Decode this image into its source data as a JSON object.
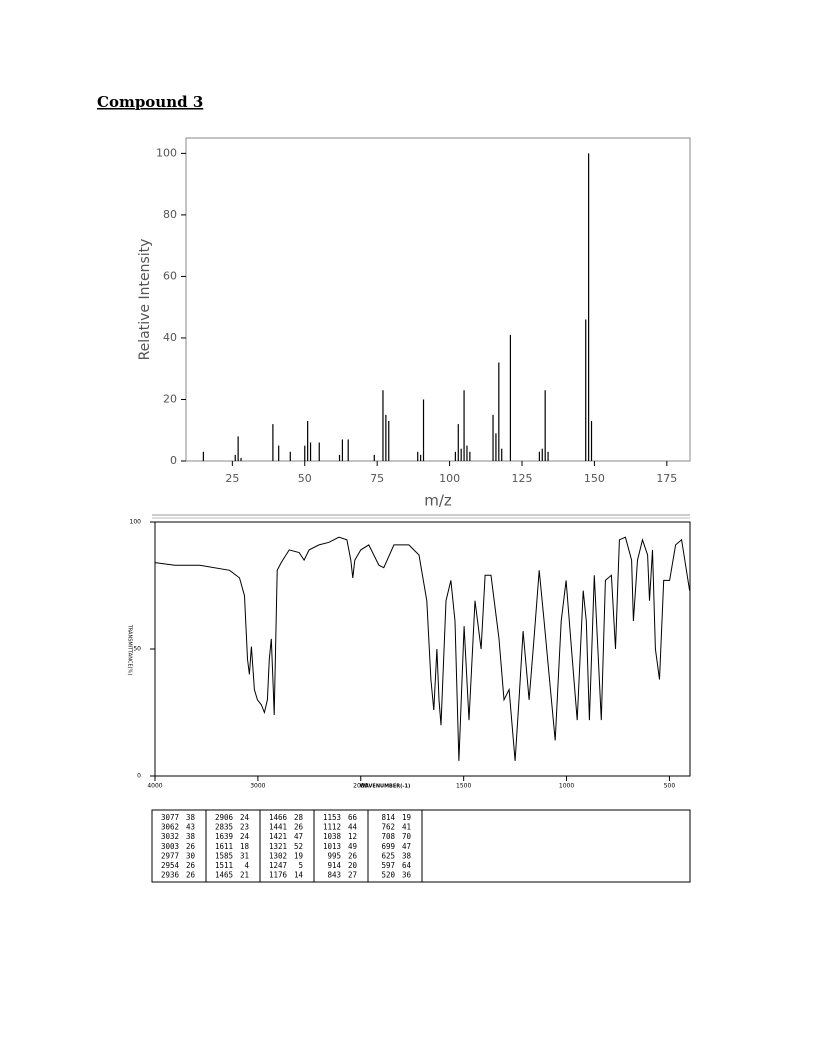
{
  "header": {
    "title": "Compound 3"
  },
  "chart_data": [
    {
      "type": "bar",
      "xlabel": "m/z",
      "ylabel": "Relative Intensity",
      "color": "#000000",
      "x": [
        15,
        26,
        27,
        28,
        39,
        41,
        45,
        50,
        51,
        52,
        55,
        62,
        63,
        65,
        74,
        77,
        78,
        79,
        89,
        90,
        91,
        102,
        103,
        104,
        105,
        106,
        107,
        115,
        116,
        117,
        118,
        121,
        131,
        132,
        133,
        134,
        147,
        148,
        149
      ],
      "values": [
        3,
        2,
        8,
        1,
        12,
        5,
        3,
        5,
        13,
        6,
        6,
        2,
        7,
        7,
        2,
        23,
        15,
        13,
        3,
        2,
        20,
        3,
        12,
        4,
        23,
        5,
        3,
        15,
        9,
        32,
        4,
        41,
        3,
        4,
        23,
        3,
        46,
        100,
        13
      ],
      "xlim": [
        9,
        183
      ],
      "ylim": [
        0,
        105
      ],
      "xticks": [
        25,
        50,
        75,
        100,
        125,
        150,
        175
      ],
      "yticks": [
        0,
        20,
        40,
        60,
        80,
        100
      ]
    },
    {
      "type": "line",
      "xlabel": "WAVENUMBER(-1)",
      "ylabel": "TRANSMITTANCE(%)",
      "color": "#000000",
      "x_scale_break": 2000,
      "x_scale_factor": 2,
      "x": [
        4000,
        3807,
        3565,
        3275,
        3179,
        3130,
        3101,
        3082,
        3063,
        3034,
        3005,
        2966,
        2937,
        2908,
        2889,
        2870,
        2850,
        2841,
        2812,
        2773,
        2696,
        2599,
        2551,
        2502,
        2406,
        2309,
        2213,
        2135,
        2097,
        2077,
        2058,
        2000,
        1961,
        1912,
        1888,
        1839,
        1766,
        1717,
        1679,
        1659,
        1645,
        1630,
        1620,
        1610,
        1586,
        1562,
        1542,
        1523,
        1498,
        1474,
        1445,
        1415,
        1396,
        1367,
        1328,
        1304,
        1279,
        1250,
        1231,
        1211,
        1182,
        1158,
        1133,
        1109,
        1055,
        1026,
        1002,
        972,
        948,
        919,
        904,
        889,
        865,
        831,
        811,
        782,
        762,
        743,
        714,
        684,
        675,
        655,
        631,
        606,
        597,
        582,
        568,
        548,
        528,
        499,
        470,
        441,
        402
      ],
      "values": [
        84,
        83,
        83,
        81,
        78,
        71,
        46,
        40,
        51,
        34,
        30,
        28,
        25,
        30,
        46,
        54,
        34,
        24,
        81,
        84,
        89,
        88,
        85,
        89,
        91,
        92,
        94,
        93,
        85,
        78,
        85,
        89,
        91,
        83,
        82,
        91,
        91,
        87,
        69,
        38,
        26,
        50,
        30,
        20,
        69,
        77,
        61,
        6,
        59,
        22,
        69,
        50,
        79,
        79,
        54,
        30,
        34,
        6,
        30,
        57,
        30,
        54,
        81,
        61,
        14,
        61,
        77,
        46,
        22,
        73,
        61,
        22,
        79,
        22,
        77,
        79,
        50,
        93,
        94,
        85,
        61,
        85,
        93,
        87,
        69,
        89,
        50,
        38,
        77,
        77,
        91,
        93,
        73
      ],
      "xlim": [
        4000,
        400
      ],
      "ylim": [
        0,
        100
      ],
      "xticks": [
        4000,
        3000,
        2000,
        1500,
        1000,
        500
      ],
      "yticks": [
        0,
        50,
        100
      ]
    }
  ],
  "table": {
    "columns": [
      [
        [
          3077,
          38
        ],
        [
          3062,
          43
        ],
        [
          3032,
          38
        ],
        [
          3003,
          26
        ],
        [
          2977,
          30
        ],
        [
          2954,
          26
        ],
        [
          2936,
          26
        ]
      ],
      [
        [
          2906,
          24
        ],
        [
          2835,
          23
        ],
        [
          1639,
          24
        ],
        [
          1611,
          18
        ],
        [
          1585,
          31
        ],
        [
          1511,
          4
        ],
        [
          1465,
          21
        ]
      ],
      [
        [
          1466,
          28
        ],
        [
          1441,
          26
        ],
        [
          1421,
          47
        ],
        [
          1321,
          52
        ],
        [
          1302,
          19
        ],
        [
          1247,
          5
        ],
        [
          1176,
          14
        ]
      ],
      [
        [
          1153,
          66
        ],
        [
          1112,
          44
        ],
        [
          1038,
          12
        ],
        [
          1013,
          49
        ],
        [
          995,
          26
        ],
        [
          914,
          20
        ],
        [
          843,
          27
        ]
      ],
      [
        [
          814,
          19
        ],
        [
          762,
          41
        ],
        [
          708,
          70
        ],
        [
          699,
          47
        ],
        [
          625,
          38
        ],
        [
          597,
          64
        ],
        [
          520,
          36
        ]
      ]
    ]
  }
}
